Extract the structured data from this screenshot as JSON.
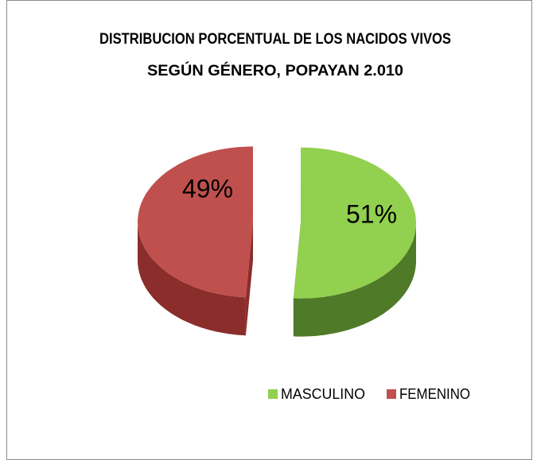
{
  "chart_data": {
    "type": "pie",
    "title": [
      "DISTRIBUCION PORCENTUAL  DE LOS NACIDOS VIVOS",
      "SEGÚN GÉNERO, POPAYAN 2.010"
    ],
    "categories": [
      "MASCULINO",
      "FEMENINO"
    ],
    "values": [
      51,
      49
    ],
    "value_labels": [
      "51%",
      "49%"
    ],
    "colors": [
      "#92d050",
      "#c0504d"
    ],
    "side_colors": [
      "#4f7a28",
      "#8a2d2b"
    ],
    "legend": "bottom"
  }
}
